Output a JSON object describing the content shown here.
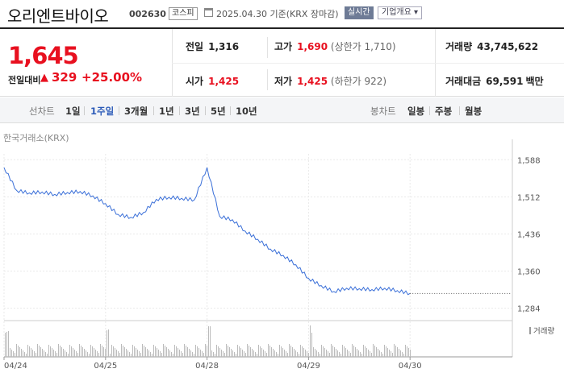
{
  "header": {
    "name": "오리엔트바이오",
    "code": "002630",
    "market": "코스피",
    "date": "2025.04.30 기준(KRX 장마감)",
    "realtime": "실시간",
    "overview": "기업개요 ▾"
  },
  "price": {
    "current": "1,645",
    "diff_label": "전일대비",
    "diff_arrow": "▲",
    "diff_value": "329",
    "diff_rate": "+25.00%"
  },
  "stats": {
    "prev_close": {
      "label": "전일",
      "value": "1,316"
    },
    "high": {
      "label": "고가",
      "value": "1,690",
      "sub": "(상한가 1,710)"
    },
    "volume": {
      "label": "거래량",
      "value": "43,745,622"
    },
    "open": {
      "label": "시가",
      "value": "1,425"
    },
    "low": {
      "label": "저가",
      "value": "1,425",
      "sub": "(하한가 922)"
    },
    "amount": {
      "label": "거래대금",
      "value": "69,591",
      "unit": "백만"
    }
  },
  "periods": {
    "line_label": "선차트",
    "items": [
      "1일",
      "1주일",
      "3개월",
      "1년",
      "3년",
      "5년",
      "10년"
    ],
    "active": "1주일",
    "candle_label": "봉차트",
    "candle_items": [
      "일봉",
      "주봉",
      "월봉"
    ]
  },
  "chart_data": {
    "type": "line",
    "exchange": "한국거래소(KRX)",
    "volume_label": "거래량",
    "x_ticks": [
      "04/24",
      "04/25",
      "04/28",
      "04/29",
      "04/30"
    ],
    "y_ticks": [
      1588,
      1512,
      1436,
      1360,
      1284
    ],
    "ylim": [
      1270,
      1600
    ],
    "line_color": "#3a6fd8",
    "x": [
      "04/24",
      "04/24",
      "04/24",
      "04/24",
      "04/24",
      "04/24",
      "04/24",
      "04/24",
      "04/25",
      "04/25",
      "04/25",
      "04/25",
      "04/25",
      "04/25",
      "04/25",
      "04/25",
      "04/28",
      "04/28",
      "04/28",
      "04/28",
      "04/28",
      "04/28",
      "04/28",
      "04/28",
      "04/29",
      "04/29",
      "04/29",
      "04/29",
      "04/29",
      "04/29",
      "04/29",
      "04/29",
      "04/30"
    ],
    "series": [
      {
        "values": [
          1572,
          1525,
          1520,
          1522,
          1517,
          1521,
          1523,
          1514,
          1498,
          1476,
          1470,
          1480,
          1507,
          1511,
          1509,
          1506,
          1572,
          1472,
          1465,
          1442,
          1425,
          1405,
          1392,
          1373,
          1345,
          1330,
          1318,
          1325,
          1324,
          1322,
          1325,
          1320,
          1314
        ]
      }
    ]
  }
}
